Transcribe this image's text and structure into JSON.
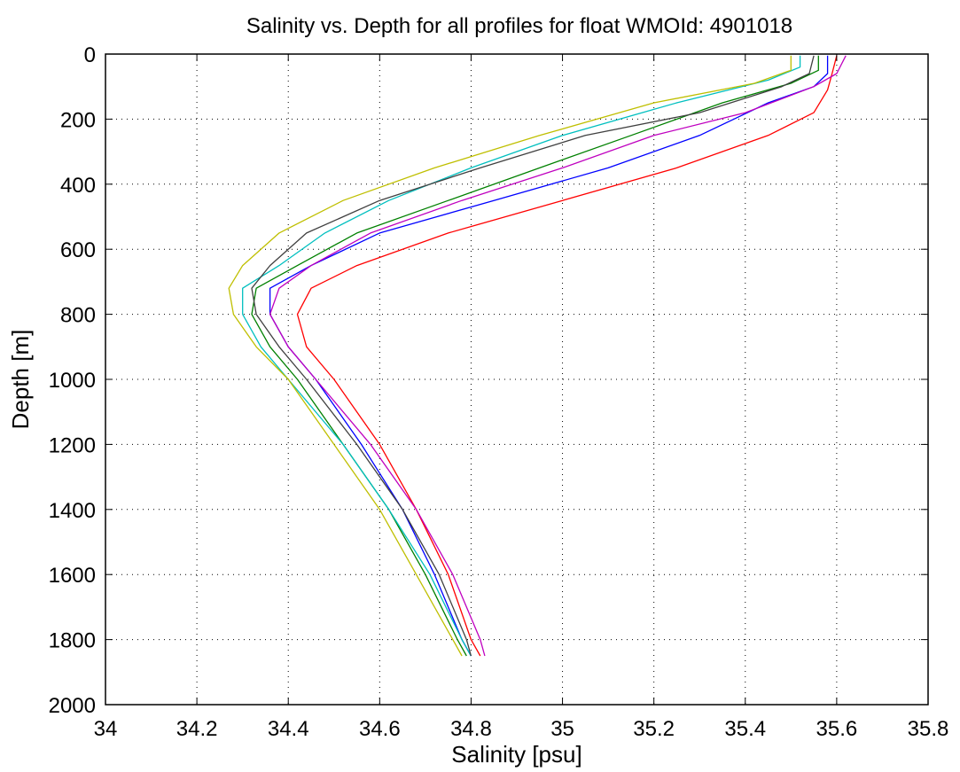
{
  "chart_data": {
    "type": "line",
    "title": "Salinity vs. Depth for all profiles for float WMOId: 4901018",
    "xlabel": "Salinity [psu]",
    "ylabel": "Depth [m]",
    "xlim": [
      34,
      35.8
    ],
    "ylim": [
      0,
      2000
    ],
    "y_reversed": true,
    "x_ticks": [
      "34",
      "34.2",
      "34.4",
      "34.6",
      "34.8",
      "35",
      "35.2",
      "35.4",
      "35.6",
      "35.8"
    ],
    "y_ticks": [
      "0",
      "200",
      "400",
      "600",
      "800",
      "1000",
      "1200",
      "1400",
      "1600",
      "1800",
      "2000"
    ],
    "x_tick_values": [
      34,
      34.2,
      34.4,
      34.6,
      34.8,
      35,
      35.2,
      35.4,
      35.6,
      35.8
    ],
    "y_tick_values": [
      0,
      200,
      400,
      600,
      800,
      1000,
      1200,
      1400,
      1600,
      1800,
      2000
    ],
    "grid": true,
    "grid_style": "dotted",
    "legend": "none",
    "series_colors": [
      "#0000ff",
      "#008000",
      "#ff0000",
      "#00bfbf",
      "#bf00bf",
      "#bfbf00",
      "#404040"
    ],
    "series": [
      {
        "depth": [
          5,
          60,
          100,
          150,
          250,
          350,
          450,
          550,
          650,
          720,
          800,
          900,
          1000,
          1200,
          1400,
          1600,
          1800,
          1850
        ],
        "salinity": [
          35.58,
          35.58,
          35.55,
          35.45,
          35.3,
          35.1,
          34.85,
          34.6,
          34.45,
          34.36,
          34.36,
          34.4,
          34.46,
          34.56,
          34.65,
          34.72,
          34.78,
          34.8
        ]
      },
      {
        "depth": [
          5,
          50,
          90,
          150,
          250,
          350,
          450,
          550,
          650,
          720,
          800,
          900,
          1000,
          1200,
          1400,
          1600,
          1800,
          1850
        ],
        "salinity": [
          35.56,
          35.56,
          35.5,
          35.35,
          35.15,
          34.95,
          34.75,
          34.55,
          34.42,
          34.33,
          34.32,
          34.36,
          34.42,
          34.52,
          34.62,
          34.7,
          34.77,
          34.79
        ]
      },
      {
        "depth": [
          5,
          60,
          110,
          180,
          250,
          350,
          450,
          550,
          650,
          720,
          800,
          900,
          1000,
          1200,
          1400,
          1600,
          1800,
          1850
        ],
        "salinity": [
          35.6,
          35.59,
          35.58,
          35.55,
          35.45,
          35.25,
          35.0,
          34.75,
          34.55,
          34.45,
          34.42,
          34.44,
          34.5,
          34.6,
          34.68,
          34.75,
          34.8,
          34.82
        ]
      },
      {
        "depth": [
          5,
          40,
          80,
          150,
          250,
          350,
          450,
          550,
          650,
          720,
          800,
          900,
          1000,
          1200,
          1400,
          1600,
          1800,
          1850
        ],
        "salinity": [
          35.52,
          35.52,
          35.45,
          35.25,
          35.0,
          34.8,
          34.62,
          34.48,
          34.38,
          34.3,
          34.3,
          34.34,
          34.4,
          34.52,
          34.62,
          34.71,
          34.78,
          34.8
        ]
      },
      {
        "depth": [
          5,
          60,
          100,
          180,
          250,
          350,
          450,
          550,
          650,
          720,
          800,
          900,
          1000,
          1200,
          1400,
          1600,
          1800,
          1850
        ],
        "salinity": [
          35.62,
          35.6,
          35.55,
          35.4,
          35.2,
          35.0,
          34.78,
          34.58,
          34.45,
          34.38,
          34.36,
          34.4,
          34.46,
          34.58,
          34.68,
          34.76,
          34.82,
          34.83
        ]
      },
      {
        "depth": [
          5,
          50,
          90,
          150,
          250,
          350,
          450,
          550,
          650,
          720,
          800,
          900,
          1000,
          1200,
          1400,
          1600,
          1800,
          1850
        ],
        "salinity": [
          35.5,
          35.5,
          35.42,
          35.2,
          34.95,
          34.72,
          34.52,
          34.38,
          34.3,
          34.27,
          34.28,
          34.33,
          34.4,
          34.5,
          34.6,
          34.68,
          34.76,
          34.78
        ]
      },
      {
        "depth": [
          5,
          60,
          100,
          180,
          250,
          350,
          450,
          550,
          650,
          720,
          800,
          900,
          1000,
          1200,
          1400,
          1600,
          1800,
          1850
        ],
        "salinity": [
          35.55,
          35.54,
          35.48,
          35.3,
          35.05,
          34.82,
          34.6,
          34.44,
          34.36,
          34.32,
          34.33,
          34.38,
          34.44,
          34.55,
          34.65,
          34.73,
          34.79,
          34.8
        ]
      }
    ]
  }
}
